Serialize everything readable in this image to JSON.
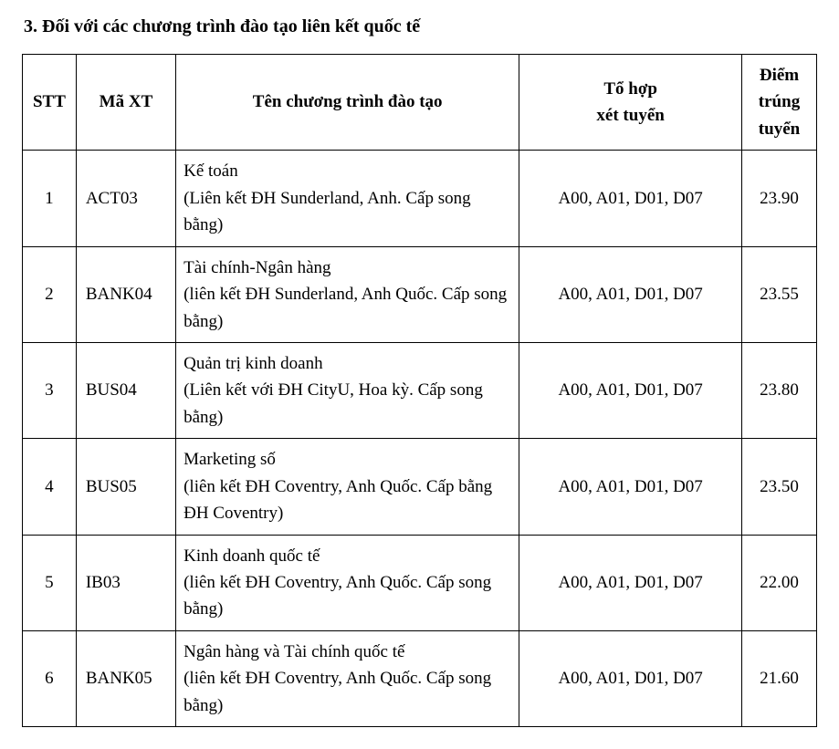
{
  "heading": "3. Đối với các chương trình đào tạo liên kết quốc tế",
  "table": {
    "columns": {
      "stt": "STT",
      "code": "Mã XT",
      "name": "Tên chương trình đào tạo",
      "combo_l1": "Tổ hợp",
      "combo_l2": "xét tuyển",
      "score_l1": "Điểm",
      "score_l2": "trúng",
      "score_l3": "tuyển"
    },
    "rows": [
      {
        "stt": "1",
        "code": "ACT03",
        "name_l1": "Kế toán",
        "name_l2": "(Liên kết ĐH Sunderland, Anh. Cấp song bằng)",
        "combo": "A00, A01, D01, D07",
        "score": "23.90"
      },
      {
        "stt": "2",
        "code": "BANK04",
        "name_l1": "Tài chính-Ngân hàng",
        "name_l2": "(liên kết ĐH Sunderland, Anh Quốc. Cấp song bằng)",
        "combo": "A00, A01, D01, D07",
        "score": "23.55"
      },
      {
        "stt": "3",
        "code": "BUS04",
        "name_l1": "Quản trị kinh doanh",
        "name_l2": "(Liên kết với ĐH CityU, Hoa kỳ. Cấp song bằng)",
        "combo": "A00, A01, D01, D07",
        "score": "23.80"
      },
      {
        "stt": "4",
        "code": "BUS05",
        "name_l1": "Marketing số",
        "name_l2": "(liên kết ĐH Coventry, Anh Quốc. Cấp bằng ĐH Coventry)",
        "combo": "A00, A01, D01, D07",
        "score": "23.50"
      },
      {
        "stt": "5",
        "code": "IB03",
        "name_l1": "Kinh doanh quốc tế",
        "name_l2": "(liên kết ĐH Coventry, Anh Quốc. Cấp song bằng)",
        "combo": "A00, A01, D01, D07",
        "score": "22.00"
      },
      {
        "stt": "6",
        "code": "BANK05",
        "name_l1": "Ngân hàng và Tài chính quốc tế",
        "name_l2": "(liên kết ĐH Coventry, Anh Quốc. Cấp song bằng)",
        "combo": "A00, A01, D01, D07",
        "score": "21.60"
      }
    ]
  }
}
